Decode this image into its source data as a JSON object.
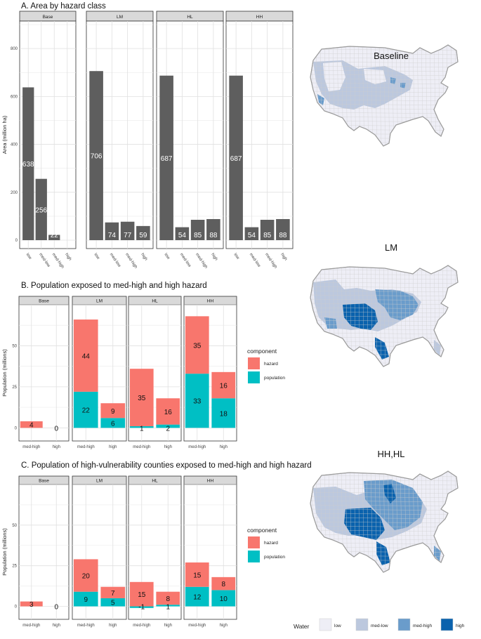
{
  "chart_data": [
    {
      "id": "A",
      "type": "bar",
      "title": "A. Area by hazard class",
      "ylabel": "Area (million ha)",
      "ylim": [
        0,
        950
      ],
      "yticks": [
        0,
        200,
        400,
        600,
        800
      ],
      "categories": [
        "low",
        "med-low",
        "med-high",
        "high"
      ],
      "facets": [
        {
          "name": "Base",
          "values": [
            638,
            256,
            22,
            null
          ],
          "labels": [
            "638",
            "256",
            "22",
            ""
          ]
        },
        {
          "name": "LM",
          "values": [
            706,
            74,
            77,
            59
          ],
          "labels": [
            "706",
            "74",
            "77",
            "59"
          ]
        },
        {
          "name": "HL",
          "values": [
            687,
            54,
            85,
            88
          ],
          "labels": [
            "687",
            "54",
            "85",
            "88"
          ]
        },
        {
          "name": "HH",
          "values": [
            687,
            54,
            85,
            88
          ],
          "labels": [
            "687",
            "54",
            "85",
            "88"
          ]
        }
      ],
      "bar_color": "#5e5e5e"
    },
    {
      "id": "B",
      "type": "bar",
      "stacked": true,
      "title": "B. Population exposed to med-high and high hazard",
      "ylabel": "Population (millions)",
      "ylim": [
        -8,
        75
      ],
      "yticks": [
        0,
        25,
        50
      ],
      "categories": [
        "med-high",
        "high"
      ],
      "legend": {
        "title": "component",
        "entries": [
          "hazard",
          "population"
        ]
      },
      "colors": {
        "hazard": "#f8766d",
        "population": "#00bfc4"
      },
      "facets": [
        {
          "name": "Base",
          "hazard": [
            4,
            0
          ],
          "population": [
            0,
            0
          ],
          "hazard_labels": [
            "4",
            "0"
          ],
          "population_labels": [
            "",
            ""
          ]
        },
        {
          "name": "LM",
          "hazard": [
            44,
            9
          ],
          "population": [
            22,
            6
          ],
          "hazard_labels": [
            "44",
            "9"
          ],
          "population_labels": [
            "22",
            "6"
          ]
        },
        {
          "name": "HL",
          "hazard": [
            35,
            16
          ],
          "population": [
            1,
            2
          ],
          "hazard_labels": [
            "35",
            "16"
          ],
          "population_labels": [
            "1",
            "2"
          ]
        },
        {
          "name": "HH",
          "hazard": [
            35,
            16
          ],
          "population": [
            33,
            18
          ],
          "hazard_labels": [
            "35",
            "16"
          ],
          "population_labels": [
            "33",
            "18"
          ]
        }
      ]
    },
    {
      "id": "C",
      "type": "bar",
      "stacked": true,
      "title": "C. Population of high-vulnerability counties exposed to med-high and high hazard",
      "ylabel": "Population (millions)",
      "ylim": [
        -8,
        75
      ],
      "yticks": [
        0,
        25,
        50
      ],
      "categories": [
        "med-high",
        "high"
      ],
      "legend": {
        "title": "component",
        "entries": [
          "hazard",
          "population"
        ]
      },
      "colors": {
        "hazard": "#f8766d",
        "population": "#00bfc4"
      },
      "facets": [
        {
          "name": "Base",
          "hazard": [
            3,
            0
          ],
          "population": [
            0,
            0
          ],
          "hazard_labels": [
            "3",
            "0"
          ],
          "population_labels": [
            "",
            ""
          ]
        },
        {
          "name": "LM",
          "hazard": [
            20,
            7
          ],
          "population": [
            9,
            5
          ],
          "hazard_labels": [
            "20",
            "7"
          ],
          "population_labels": [
            "9",
            "5"
          ]
        },
        {
          "name": "HL",
          "hazard": [
            15,
            8
          ],
          "population": [
            -1,
            1
          ],
          "hazard_labels": [
            "15",
            "8"
          ],
          "population_labels": [
            "-1",
            "1"
          ]
        },
        {
          "name": "HH",
          "hazard": [
            15,
            8
          ],
          "population": [
            12,
            10
          ],
          "hazard_labels": [
            "15",
            "8"
          ],
          "population_labels": [
            "12",
            "10"
          ]
        }
      ]
    }
  ],
  "maps": [
    {
      "title": "Baseline"
    },
    {
      "title": "LM"
    },
    {
      "title": "HH,HL"
    }
  ],
  "map_legend": {
    "title": "Water",
    "entries": [
      {
        "label": "low",
        "color": "#eeeef6"
      },
      {
        "label": "med-low",
        "color": "#bcc8de"
      },
      {
        "label": "med-high",
        "color": "#6a9ccb"
      },
      {
        "label": "high",
        "color": "#0a62ad"
      }
    ]
  }
}
